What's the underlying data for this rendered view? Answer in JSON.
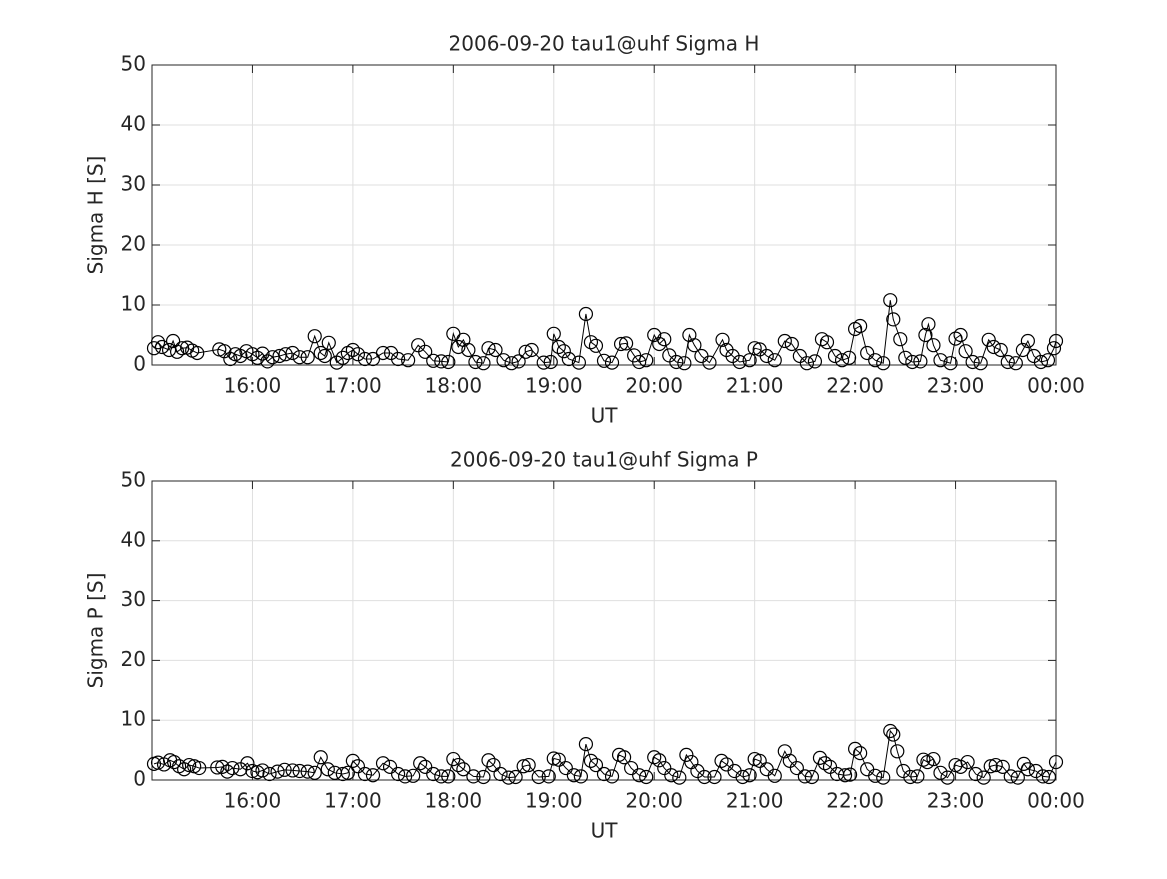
{
  "chart_data": [
    {
      "type": "line",
      "title": "2006-09-20  tau1@uhf Sigma H",
      "xlabel": "UT",
      "ylabel": "Sigma H [S]",
      "xlim": [
        15,
        24
      ],
      "ylim": [
        0,
        50
      ],
      "grid": true,
      "color": "#000000",
      "marker": "circle",
      "xticks": [
        {
          "value": 16,
          "label": "16:00"
        },
        {
          "value": 17,
          "label": "17:00"
        },
        {
          "value": 18,
          "label": "18:00"
        },
        {
          "value": 19,
          "label": "19:00"
        },
        {
          "value": 20,
          "label": "20:00"
        },
        {
          "value": 21,
          "label": "21:00"
        },
        {
          "value": 22,
          "label": "22:00"
        },
        {
          "value": 23,
          "label": "23:00"
        },
        {
          "value": 24,
          "label": "00:00"
        }
      ],
      "yticks": [
        0,
        10,
        20,
        30,
        40,
        50
      ],
      "x": [
        15.02,
        15.06,
        15.1,
        15.17,
        15.21,
        15.25,
        15.3,
        15.35,
        15.4,
        15.45,
        15.67,
        15.72,
        15.78,
        15.83,
        15.88,
        15.94,
        16.0,
        16.05,
        16.1,
        16.15,
        16.2,
        16.27,
        16.33,
        16.4,
        16.47,
        16.55,
        16.62,
        16.68,
        16.72,
        16.76,
        16.84,
        16.9,
        16.95,
        17.0,
        17.05,
        17.12,
        17.2,
        17.3,
        17.38,
        17.45,
        17.55,
        17.65,
        17.72,
        17.8,
        17.88,
        17.95,
        18.0,
        18.05,
        18.1,
        18.15,
        18.22,
        18.3,
        18.35,
        18.42,
        18.5,
        18.58,
        18.65,
        18.72,
        18.78,
        18.9,
        18.97,
        19.0,
        19.05,
        19.1,
        19.15,
        19.25,
        19.32,
        19.37,
        19.42,
        19.5,
        19.58,
        19.67,
        19.72,
        19.8,
        19.85,
        19.92,
        20.0,
        20.05,
        20.1,
        20.15,
        20.22,
        20.3,
        20.35,
        20.4,
        20.47,
        20.55,
        20.68,
        20.72,
        20.78,
        20.85,
        20.95,
        21.0,
        21.05,
        21.12,
        21.2,
        21.3,
        21.37,
        21.45,
        21.52,
        21.6,
        21.67,
        21.72,
        21.8,
        21.87,
        21.94,
        22.0,
        22.05,
        22.12,
        22.2,
        22.28,
        22.35,
        22.38,
        22.45,
        22.5,
        22.57,
        22.65,
        22.7,
        22.73,
        22.78,
        22.85,
        22.95,
        23.0,
        23.05,
        23.1,
        23.17,
        23.25,
        23.33,
        23.38,
        23.45,
        23.52,
        23.6,
        23.67,
        23.72,
        23.78,
        23.85,
        23.92,
        23.98,
        24.0
      ],
      "values": [
        2.8,
        3.8,
        3.0,
        2.5,
        4.0,
        2.2,
        2.8,
        2.9,
        2.4,
        2.0,
        2.6,
        2.3,
        1.0,
        1.8,
        1.5,
        2.3,
        1.8,
        1.2,
        1.9,
        0.6,
        1.3,
        1.5,
        1.8,
        2.0,
        1.3,
        1.3,
        4.8,
        2.0,
        1.5,
        3.7,
        0.4,
        1.2,
        2.0,
        2.5,
        1.8,
        1.0,
        1.0,
        2.0,
        2.0,
        1.0,
        0.8,
        3.3,
        2.2,
        0.7,
        0.6,
        0.5,
        5.2,
        3.0,
        4.2,
        2.5,
        0.5,
        0.3,
        2.8,
        2.5,
        0.8,
        0.3,
        0.6,
        2.2,
        2.5,
        0.4,
        0.5,
        5.2,
        3.0,
        2.3,
        1.0,
        0.4,
        8.5,
        3.8,
        3.2,
        0.7,
        0.4,
        3.5,
        3.6,
        1.6,
        0.5,
        0.8,
        5.0,
        3.5,
        4.3,
        1.6,
        0.5,
        0.3,
        5.0,
        3.3,
        1.5,
        0.4,
        4.2,
        2.5,
        1.5,
        0.5,
        0.8,
        2.8,
        2.6,
        1.5,
        0.8,
        4.0,
        3.5,
        1.5,
        0.3,
        0.6,
        4.3,
        3.8,
        1.5,
        0.8,
        1.2,
        6.0,
        6.5,
        2.0,
        0.8,
        0.3,
        10.8,
        7.6,
        4.3,
        1.2,
        0.5,
        0.6,
        5.0,
        6.8,
        3.3,
        0.8,
        0.3,
        4.4,
        5.0,
        2.3,
        0.5,
        0.3,
        4.2,
        3.0,
        2.5,
        0.5,
        0.3,
        2.5,
        4.0,
        1.5,
        0.5,
        0.8,
        2.8,
        4.0
      ]
    },
    {
      "type": "line",
      "title": "2006-09-20  tau1@uhf Sigma P",
      "xlabel": "UT",
      "ylabel": "Sigma P [S]",
      "xlim": [
        15,
        24
      ],
      "ylim": [
        0,
        50
      ],
      "grid": true,
      "color": "#000000",
      "marker": "circle",
      "xticks": [
        {
          "value": 16,
          "label": "16:00"
        },
        {
          "value": 17,
          "label": "17:00"
        },
        {
          "value": 18,
          "label": "18:00"
        },
        {
          "value": 19,
          "label": "19:00"
        },
        {
          "value": 20,
          "label": "20:00"
        },
        {
          "value": 21,
          "label": "21:00"
        },
        {
          "value": 22,
          "label": "22:00"
        },
        {
          "value": 23,
          "label": "23:00"
        },
        {
          "value": 24,
          "label": "00:00"
        }
      ],
      "yticks": [
        0,
        10,
        20,
        30,
        40,
        50
      ],
      "x": [
        15.02,
        15.06,
        15.12,
        15.18,
        15.22,
        15.27,
        15.32,
        15.37,
        15.42,
        15.47,
        15.65,
        15.7,
        15.75,
        15.8,
        15.88,
        15.95,
        16.0,
        16.05,
        16.1,
        16.17,
        16.25,
        16.32,
        16.4,
        16.47,
        16.55,
        16.62,
        16.68,
        16.75,
        16.82,
        16.9,
        16.95,
        17.0,
        17.05,
        17.12,
        17.2,
        17.3,
        17.37,
        17.45,
        17.52,
        17.6,
        17.67,
        17.72,
        17.8,
        17.88,
        17.95,
        18.0,
        18.05,
        18.1,
        18.2,
        18.3,
        18.35,
        18.4,
        18.47,
        18.55,
        18.62,
        18.7,
        18.75,
        18.85,
        18.95,
        19.0,
        19.05,
        19.12,
        19.2,
        19.27,
        19.32,
        19.37,
        19.42,
        19.5,
        19.58,
        19.65,
        19.7,
        19.77,
        19.85,
        19.92,
        20.0,
        20.05,
        20.1,
        20.17,
        20.25,
        20.32,
        20.37,
        20.43,
        20.5,
        20.6,
        20.67,
        20.72,
        20.8,
        20.88,
        20.95,
        21.0,
        21.05,
        21.12,
        21.2,
        21.3,
        21.35,
        21.42,
        21.5,
        21.57,
        21.65,
        21.7,
        21.75,
        21.82,
        21.9,
        21.95,
        22.0,
        22.05,
        22.12,
        22.2,
        22.28,
        22.35,
        22.38,
        22.42,
        22.48,
        22.55,
        22.62,
        22.68,
        22.72,
        22.78,
        22.85,
        22.92,
        23.0,
        23.05,
        23.12,
        23.2,
        23.28,
        23.35,
        23.4,
        23.47,
        23.55,
        23.62,
        23.68,
        23.72,
        23.8,
        23.87,
        23.93,
        24.0
      ],
      "values": [
        2.7,
        2.9,
        2.6,
        3.3,
        3.0,
        2.3,
        1.8,
        2.5,
        2.3,
        2.0,
        2.1,
        2.2,
        1.4,
        2.0,
        1.8,
        2.8,
        1.5,
        1.3,
        1.6,
        1.0,
        1.4,
        1.7,
        1.6,
        1.5,
        1.4,
        1.2,
        3.8,
        1.8,
        1.2,
        1.0,
        1.2,
        3.2,
        2.3,
        1.0,
        0.8,
        2.8,
        2.2,
        1.0,
        0.6,
        0.7,
        2.8,
        2.2,
        1.0,
        0.6,
        0.6,
        3.5,
        2.5,
        1.8,
        0.6,
        0.5,
        3.3,
        2.5,
        1.0,
        0.4,
        0.5,
        2.3,
        2.5,
        0.5,
        0.6,
        3.6,
        3.4,
        2.0,
        0.8,
        0.6,
        6.0,
        3.2,
        2.5,
        1.0,
        0.6,
        4.2,
        3.8,
        2.0,
        0.8,
        0.5,
        3.8,
        3.3,
        2.0,
        0.8,
        0.4,
        4.2,
        3.0,
        1.5,
        0.5,
        0.5,
        3.2,
        2.6,
        1.5,
        0.5,
        0.8,
        3.5,
        3.2,
        1.8,
        0.7,
        4.8,
        3.2,
        2.0,
        0.6,
        0.5,
        3.7,
        2.8,
        2.2,
        1.0,
        0.8,
        0.9,
        5.2,
        4.5,
        1.8,
        0.7,
        0.4,
        8.2,
        7.6,
        4.8,
        1.5,
        0.5,
        0.6,
        3.4,
        3.0,
        3.5,
        1.2,
        0.4,
        2.5,
        2.2,
        3.0,
        1.0,
        0.4,
        2.3,
        2.5,
        2.2,
        0.6,
        0.4,
        2.7,
        1.8,
        1.5,
        0.6,
        0.5,
        3.0
      ]
    }
  ]
}
